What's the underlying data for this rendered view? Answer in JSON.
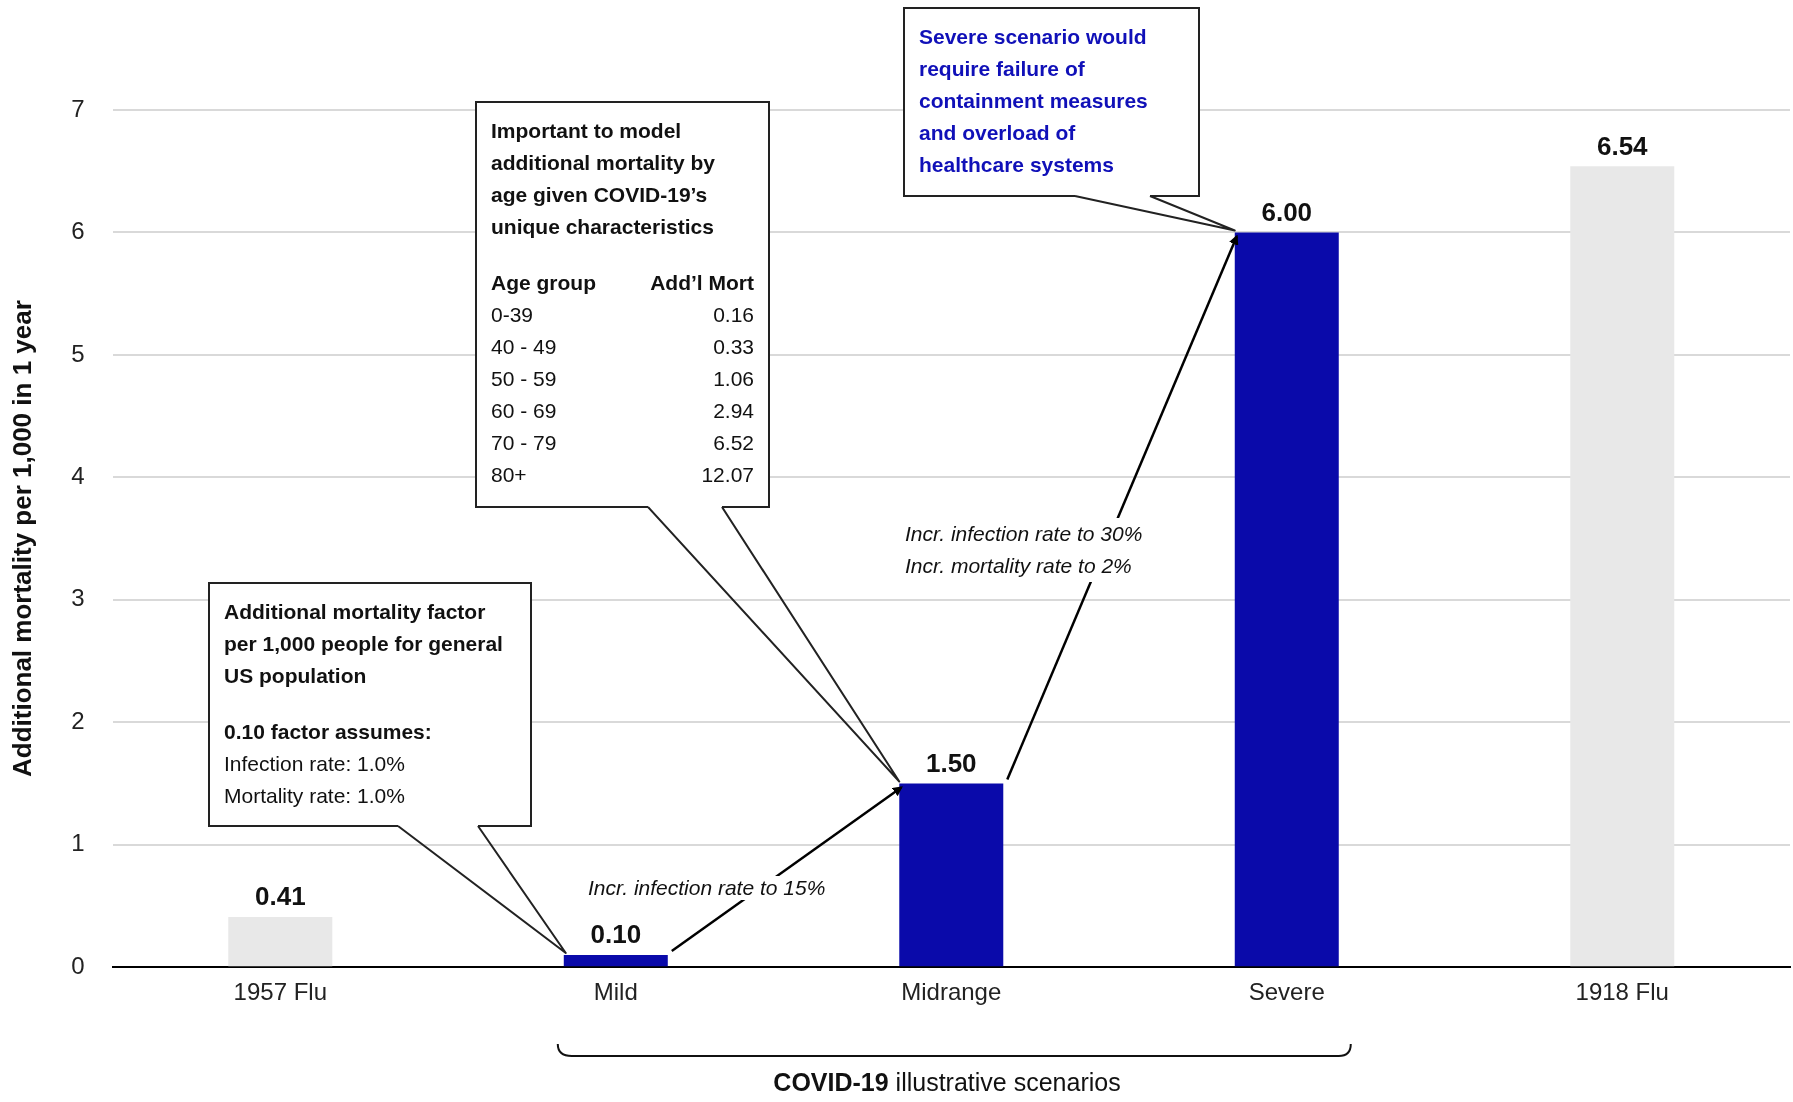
{
  "chart_data": {
    "type": "bar",
    "categories": [
      "1957 Flu",
      "Mild",
      "Midrange",
      "Severe",
      "1918 Flu"
    ],
    "values": [
      0.41,
      0.1,
      1.5,
      6.0,
      6.54
    ],
    "colors": [
      "#e8e8e8",
      "#0a0aaa",
      "#0a0aaa",
      "#0a0aaa",
      "#e8e8e8"
    ],
    "value_labels": [
      "0.41",
      "0.10",
      "1.50",
      "6.00",
      "6.54"
    ],
    "ylim": [
      0,
      7
    ],
    "yticks": [
      0,
      1,
      2,
      3,
      4,
      5,
      6,
      7
    ],
    "grid": "y",
    "ylabel": "Additional mortality per 1,000 in 1 year",
    "xlabel": "COVID-19 illustrative scenarios",
    "annotations": [
      "Additional mortality factor per 1,000 people for general US population",
      "0.10 factor assumes:",
      "Infection rate: 1.0%",
      "Mortality rate: 1.0%",
      "Important to model additional mortality by age given COVID-19’s unique characteristics",
      "Age group\tAdd’l Mort",
      "0-39\t0.16",
      "40 - 49\t0.33",
      "50 - 59\t1.06",
      "60 - 69\t2.94",
      "70 - 79\t6.52",
      "80+\t12.07",
      "Severe scenario would require failure of containment measures and overload of healthcare systems",
      "Incr. infection rate to 15%",
      "Incr. infection rate to 30%",
      "Incr. mortality rate to 2%"
    ]
  }
}
